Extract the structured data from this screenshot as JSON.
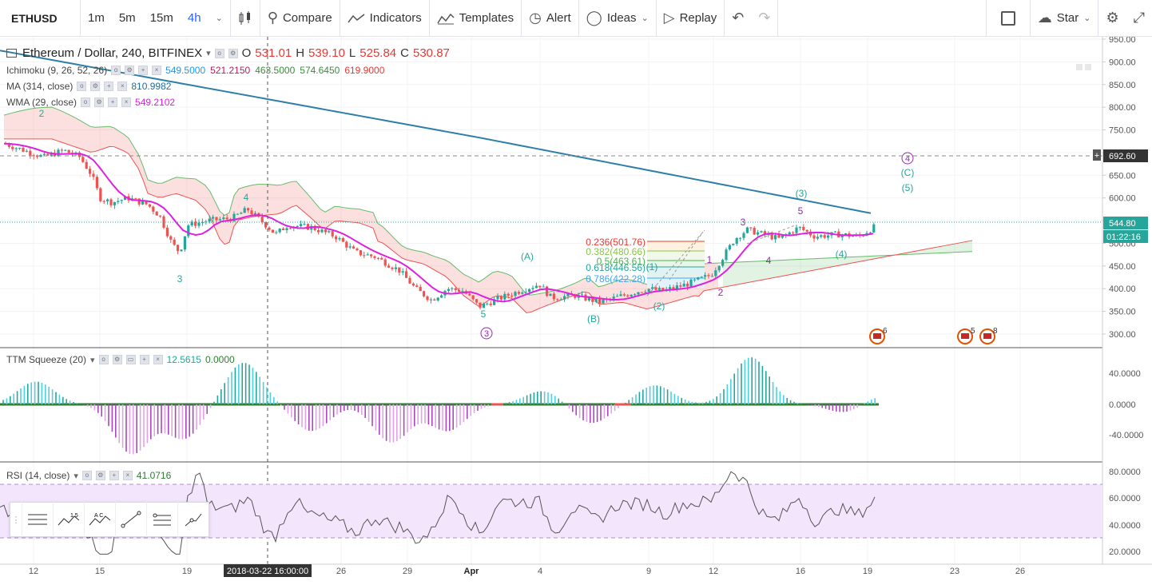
{
  "toolbar": {
    "symbol": "ETHUSD",
    "intervals": [
      "1m",
      "5m",
      "15m",
      "4h"
    ],
    "active_interval": "4h",
    "compare": "Compare",
    "indicators": "Indicators",
    "templates": "Templates",
    "alert": "Alert",
    "ideas": "Ideas",
    "replay": "Replay",
    "star": "Star"
  },
  "main_legend": {
    "title": "Ethereum / Dollar, 240, BITFINEX",
    "o_label": "O",
    "o": "531.01",
    "h_label": "H",
    "h": "539.10",
    "l_label": "L",
    "l": "525.84",
    "c_label": "C",
    "c": "530.87"
  },
  "indicators": [
    {
      "name": "Ichimoku (9, 26, 52, 26)",
      "values": [
        {
          "v": "549.5000",
          "color": "#2196f3"
        },
        {
          "v": "521.2150",
          "color": "#c2185b"
        },
        {
          "v": "463.5000",
          "color": "#388e3c"
        },
        {
          "v": "574.6450",
          "color": "#388e3c"
        },
        {
          "v": "619.9000",
          "color": "#e53935"
        }
      ]
    },
    {
      "name": "MA (314, close)",
      "values": [
        {
          "v": "810.9982",
          "color": "#1e6f9f"
        }
      ]
    },
    {
      "name": "WMA (29, close)",
      "values": [
        {
          "v": "549.2102",
          "color": "#e020e0"
        }
      ]
    }
  ],
  "ttm": {
    "name": "TTM Squeeze (20)",
    "v1": "12.5615",
    "v2": "0.0000"
  },
  "rsi": {
    "name": "RSI (14, close)",
    "v": "41.0716"
  },
  "price_axis": {
    "ticks": [
      "950.00",
      "900.00",
      "850.00",
      "800.00",
      "750.00",
      "700.00",
      "650.00",
      "600.00",
      "550.00",
      "500.00",
      "450.00",
      "400.00",
      "350.00",
      "300.00"
    ],
    "crosshair_price": "692.60",
    "last_price": "544.80",
    "countdown": "01:22:16"
  },
  "ttm_axis": {
    "ticks": [
      "40.0000",
      "0.0000",
      "-40.0000"
    ]
  },
  "rsi_axis": {
    "ticks": [
      "80.0000",
      "60.0000",
      "40.0000",
      "20.0000"
    ]
  },
  "time_axis": {
    "ticks": [
      "12",
      "15",
      "19",
      "26",
      "29",
      "Apr",
      "4",
      "9",
      "12",
      "16",
      "19",
      "23",
      "26"
    ],
    "crosshair_time": "2018-03-22 16:00:00"
  },
  "fib": [
    {
      "label": "0.236(501.76)",
      "color": "#e53935"
    },
    {
      "label": "0.382(480.66)",
      "color": "#8bc34a"
    },
    {
      "label": "0.5(463.61)",
      "color": "#4caf50"
    },
    {
      "label": "0.618(446.56)",
      "color": "#26a69a"
    },
    {
      "label": "0.786(422.28)",
      "color": "#42a5f5"
    }
  ],
  "waves": {
    "w2": "2",
    "w4a": "4",
    "w3": "3",
    "w5": "5",
    "c3": "3",
    "wA": "(A)",
    "wB": "(B)",
    "w2p": "(2)",
    "w1p": "(1)",
    "w1": "1",
    "w2b": "2",
    "w3b": "3",
    "w4b": "4",
    "w5b": "5",
    "w3p": "(3)",
    "w4p": "(4)",
    "c4": "4",
    "wC": "(C)",
    "w5p": "(5)"
  },
  "events": [
    {
      "count": "6"
    },
    {
      "count": "5"
    },
    {
      "count": "8"
    }
  ],
  "colors": {
    "bull": "#26a69a",
    "bear": "#ef5350",
    "ma": "#2e7fa8",
    "wma": "#e020e0",
    "rsi_band": "#f3e5fc"
  }
}
